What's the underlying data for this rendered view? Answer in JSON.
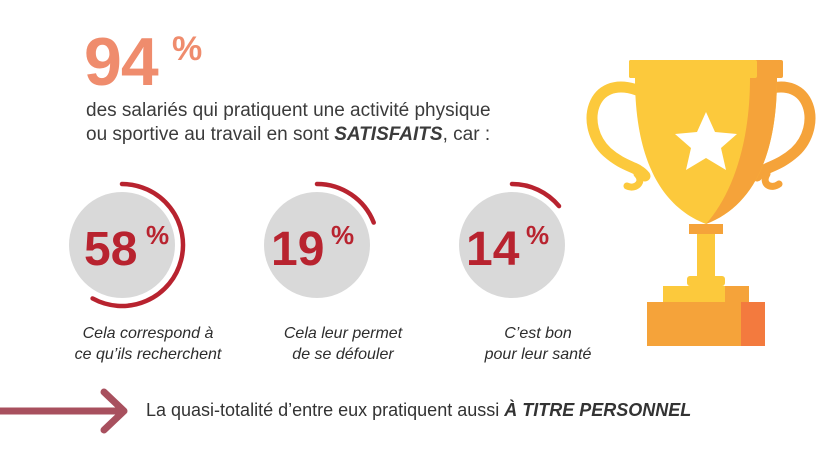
{
  "headline": {
    "value": "94",
    "unit": "%"
  },
  "intro": {
    "line1": "des salariés qui pratiquent une activité physique",
    "line2_prefix": "ou sportive au travail en sont ",
    "line2_emphasis": "SATISFAITS",
    "line2_suffix": ", car :"
  },
  "stats": [
    {
      "value": "58",
      "unit": "%",
      "share": 0.58,
      "caption_line1": "Cela correspond à",
      "caption_line2": "ce qu’ils recherchent"
    },
    {
      "value": "19",
      "unit": "%",
      "share": 0.19,
      "caption_line1": "Cela leur permet",
      "caption_line2": "de se défouler"
    },
    {
      "value": "14",
      "unit": "%",
      "share": 0.14,
      "caption_line1": "C’est bon",
      "caption_line2": "pour leur santé"
    }
  ],
  "conclusion": {
    "prefix": "La quasi-totalité d’entre eux pratiquent aussi ",
    "emphasis": "À TITRE PERSONNEL"
  },
  "colors": {
    "headline": "#ef8c6d",
    "accent_red": "#b8232f",
    "circle_gray": "#d9d9d9",
    "arrow": "#a8505e",
    "trophy_yellow": "#fcc93c",
    "trophy_orange": "#f5a33a",
    "base_orange": "#f37a3e"
  },
  "icons": {
    "trophy": "trophy-icon",
    "star": "star-icon",
    "arrow": "arrow-right-icon"
  }
}
